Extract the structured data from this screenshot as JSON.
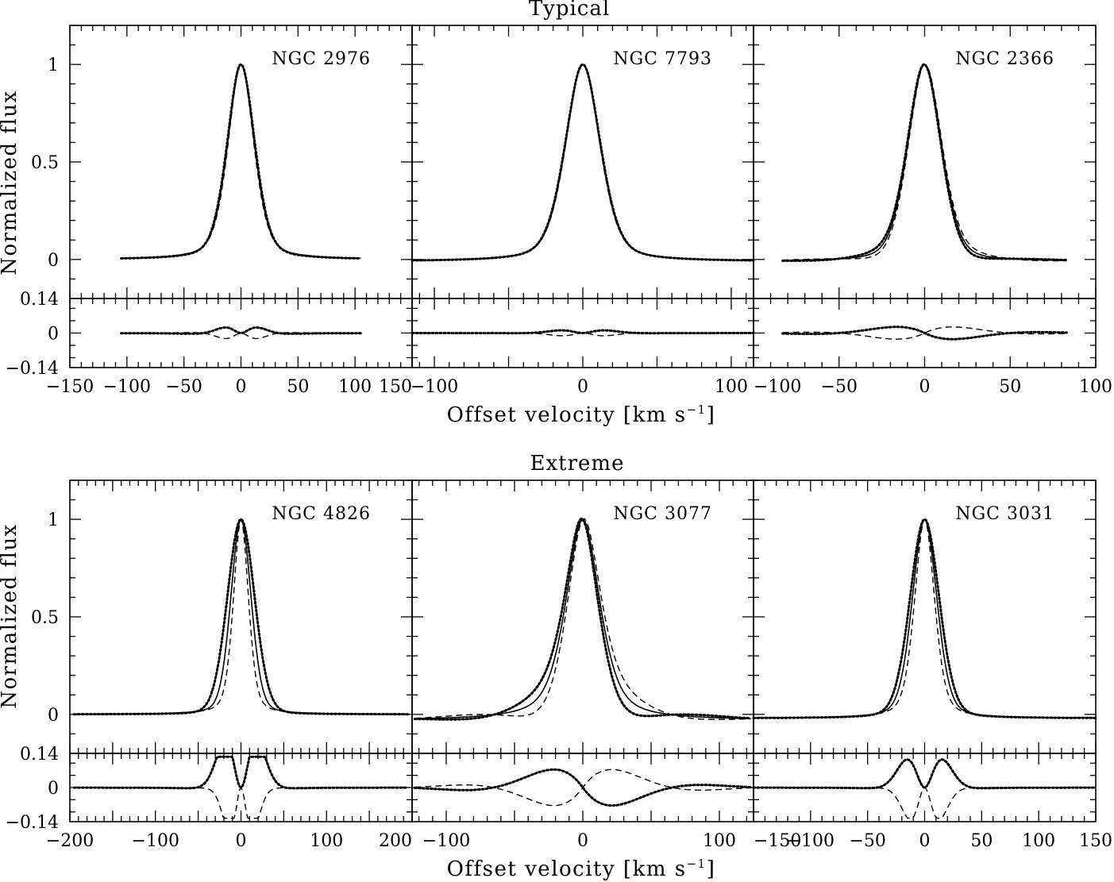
{
  "figure": {
    "colors": {
      "ink": "#000000",
      "background": "#ffffff"
    },
    "line_styles": {
      "solid": "solid",
      "dashed": "dashed",
      "dotted": "dotted"
    }
  },
  "chart_data": [
    {
      "type": "line",
      "group": "top",
      "title": "Typical",
      "xlabel": "Offset velocity [km s",
      "xlabel_sup": "−1",
      "xlabel_end": "]",
      "ylabel": "Normalized flux",
      "ylim": [
        -0.2,
        1.2
      ],
      "resid_ylim": [
        -0.14,
        0.14
      ],
      "ytick_labels": [
        "0",
        "0.5",
        "1"
      ],
      "ytick_values": [
        0,
        0.5,
        1
      ],
      "resid_tick_labels": [
        "0.14",
        "0",
        "−0.14"
      ],
      "resid_tick_values": [
        0.14,
        0,
        -0.14
      ],
      "panels": [
        {
          "name": "NGC 2976",
          "xlim": [
            -150,
            150
          ],
          "xrange": [
            -105,
            105
          ],
          "sigma": 12,
          "wmix": 0.6,
          "base": 0.0,
          "tilt": 0.0,
          "xtick_labels": [
            "−150",
            "−100",
            "−50",
            "0",
            "50",
            "100",
            "150"
          ],
          "xtick_values": [
            -150,
            -100,
            -50,
            0,
            50,
            100,
            150
          ],
          "variants": [
            {
              "dw": 0.0,
              "dsig": 0.0,
              "asym": 0.0
            },
            {
              "dw": -0.05,
              "dsig": -0.4,
              "asym": 0.0
            },
            {
              "dw": 0.06,
              "dsig": 0.4,
              "asym": 0.0
            }
          ]
        },
        {
          "name": "NGC 7793",
          "xlim": [
            -115,
            115
          ],
          "xrange": [
            -115,
            115
          ],
          "sigma": 12,
          "wmix": 0.6,
          "base": -0.01,
          "tilt": 0.0,
          "xtick_labels": [
            "−100",
            "0",
            "100"
          ],
          "xtick_values": [
            -100,
            0,
            100
          ],
          "variants": [
            {
              "dw": 0.0,
              "dsig": 0.0,
              "asym": 0.0
            },
            {
              "dw": -0.02,
              "dsig": -0.2,
              "asym": 0.0
            },
            {
              "dw": 0.02,
              "dsig": 0.2,
              "asym": 0.0
            }
          ]
        },
        {
          "name": "NGC 2366",
          "xlim": [
            -100,
            100
          ],
          "xrange": [
            -83,
            83
          ],
          "sigma": 10,
          "wmix": 0.7,
          "base": -0.01,
          "tilt": 0.0,
          "xtick_labels": [
            "−100",
            "−50",
            "0",
            "50",
            "100"
          ],
          "xtick_values": [
            -100,
            -50,
            0,
            50,
            100
          ],
          "variants": [
            {
              "dw": 0.0,
              "dsig": 0.0,
              "asym": 0.0
            },
            {
              "dw": 0.0,
              "dsig": 0.0,
              "asym": 0.12
            },
            {
              "dw": 0.0,
              "dsig": 0.0,
              "asym": -0.12
            }
          ]
        }
      ]
    },
    {
      "type": "line",
      "group": "bottom",
      "title": "Extreme",
      "xlabel": "Offset velocity [km s",
      "xlabel_sup": "−1",
      "xlabel_end": "]",
      "ylabel": "Normalized flux",
      "ylim": [
        -0.2,
        1.2
      ],
      "resid_ylim": [
        -0.14,
        0.14
      ],
      "ytick_labels": [
        "0",
        "0.5",
        "1"
      ],
      "ytick_values": [
        0,
        0.5,
        1
      ],
      "resid_tick_labels": [
        "0.14",
        "0",
        "−0.14"
      ],
      "resid_tick_values": [
        0.14,
        0,
        -0.14
      ],
      "panels": [
        {
          "name": "NGC 4826",
          "xlim": [
            -200,
            200
          ],
          "xrange": [
            -195,
            195
          ],
          "sigma": 12,
          "wmix": 0.75,
          "base": 0.0,
          "tilt": 0.0,
          "xtick_labels": [
            "−200",
            "−100",
            "0",
            "100",
            "200"
          ],
          "xtick_values": [
            -200,
            -100,
            0,
            100,
            200
          ],
          "variants": [
            {
              "dw": 0.0,
              "dsig": 0.0,
              "asym": 0.0
            },
            {
              "dw": -0.15,
              "dsig": -3,
              "asym": 0.0
            },
            {
              "dw": 0.15,
              "dsig": 4,
              "asym": 0.0
            }
          ]
        },
        {
          "name": "NGC 3077",
          "xlim": [
            -125,
            125
          ],
          "xrange": [
            -123,
            123
          ],
          "sigma": 13,
          "wmix": 0.4,
          "base": -0.03,
          "tilt": 0.0,
          "xtick_labels": [
            "−100",
            "0",
            "100"
          ],
          "xtick_values": [
            -100,
            0,
            100
          ],
          "variants": [
            {
              "dw": 0.0,
              "dsig": 0.0,
              "asym": 0.0
            },
            {
              "dw": 0.0,
              "dsig": 0.0,
              "asym": 0.35
            },
            {
              "dw": 0.0,
              "dsig": 0.0,
              "asym": -0.35
            }
          ]
        },
        {
          "name": "NGC 3031",
          "xlim": [
            -150,
            150
          ],
          "xrange": [
            -150,
            150
          ],
          "sigma": 11,
          "wmix": 0.7,
          "base": -0.02,
          "tilt": 0.0,
          "xtick_labels": [
            "−150",
            "−100",
            "−50",
            "0",
            "50",
            "100",
            "150"
          ],
          "xtick_values": [
            -150,
            -100,
            -50,
            0,
            50,
            100,
            150
          ],
          "variants": [
            {
              "dw": 0.0,
              "dsig": 0.0,
              "asym": 0.0
            },
            {
              "dw": -0.12,
              "dsig": -2,
              "asym": 0.0
            },
            {
              "dw": 0.12,
              "dsig": 2,
              "asym": 0.0
            }
          ]
        }
      ]
    }
  ]
}
